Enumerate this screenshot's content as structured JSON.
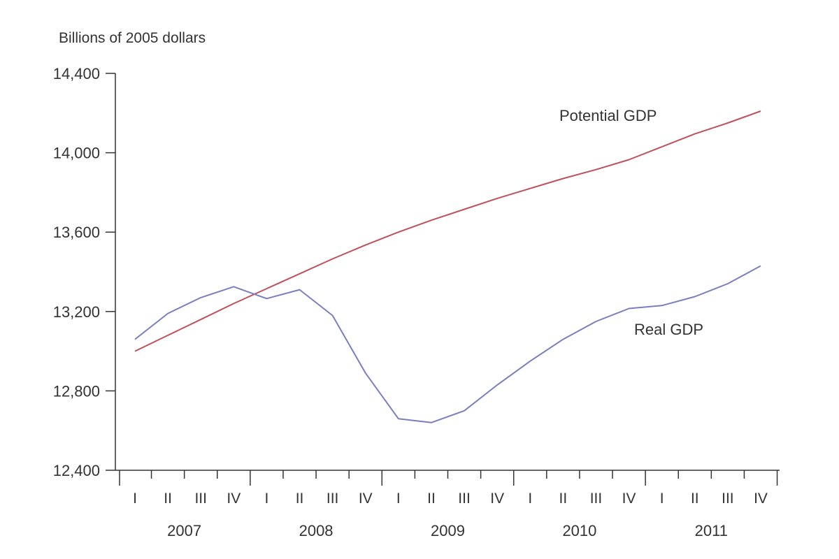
{
  "chart_data": {
    "type": "line",
    "ylabel": "Billions of 2005 dollars",
    "xlabel": "",
    "ylim": [
      12400,
      14400
    ],
    "yticks": [
      12400,
      12800,
      13200,
      13600,
      14000,
      14400
    ],
    "ytick_labels": [
      "12,400",
      "12,800",
      "13,200",
      "13,600",
      "14,000",
      "14,400"
    ],
    "quarter_labels": [
      "I",
      "II",
      "III",
      "IV",
      "I",
      "II",
      "III",
      "IV",
      "I",
      "II",
      "III",
      "IV",
      "I",
      "II",
      "III",
      "IV",
      "I",
      "II",
      "III",
      "IV"
    ],
    "years": [
      "2007",
      "2008",
      "2009",
      "2010",
      "2011"
    ],
    "x": [
      "2007 Q1",
      "2007 Q2",
      "2007 Q3",
      "2007 Q4",
      "2008 Q1",
      "2008 Q2",
      "2008 Q3",
      "2008 Q4",
      "2009 Q1",
      "2009 Q2",
      "2009 Q3",
      "2009 Q4",
      "2010 Q1",
      "2010 Q2",
      "2010 Q3",
      "2010 Q4",
      "2011 Q1",
      "2011 Q2",
      "2011 Q3",
      "2011 Q4"
    ],
    "series": [
      {
        "name": "Potential GDP",
        "color": "#c0505a",
        "values": [
          13000,
          13080,
          13160,
          13240,
          13315,
          13390,
          13465,
          13535,
          13600,
          13660,
          13715,
          13770,
          13820,
          13870,
          13915,
          13965,
          14030,
          14095,
          14150,
          14210
        ]
      },
      {
        "name": "Real GDP",
        "color": "#7a7ec0",
        "values": [
          13060,
          13190,
          13270,
          13325,
          13265,
          13310,
          13180,
          12890,
          12660,
          12640,
          12700,
          12830,
          12950,
          13060,
          13150,
          13215,
          13230,
          13275,
          13340,
          13430
        ]
      }
    ]
  }
}
